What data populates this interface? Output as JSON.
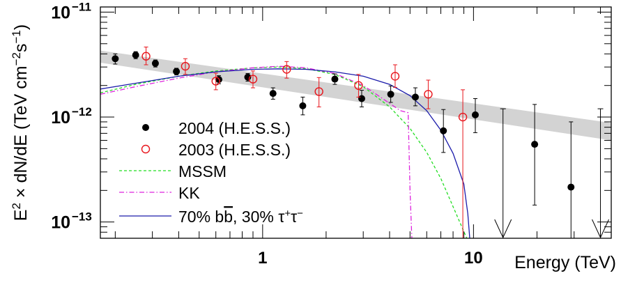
{
  "chart_data": {
    "type": "scatter",
    "title": "",
    "xlabel": "Energy (TeV)",
    "ylabel_parts": {
      "e": "E",
      "e_sup": "2",
      "mid": " × dN/dE (TeV cm",
      "cm_sup": "−2",
      "s": "s",
      "s_sup": "−1",
      "end": ")"
    },
    "x_scale": "log",
    "y_scale": "log",
    "xlim": [
      0.17,
      45
    ],
    "ylim": [
      7e-14,
      1.12e-11
    ],
    "x_ticks": [
      {
        "value": 1,
        "label": "1"
      },
      {
        "value": 10,
        "label": "10"
      }
    ],
    "y_ticks": [
      {
        "value": 1e-13,
        "base": "10",
        "exp": "−13"
      },
      {
        "value": 1e-12,
        "base": "10",
        "exp": "−12"
      },
      {
        "value": 1e-11,
        "base": "10",
        "exp": "−11"
      }
    ],
    "legend_position": "bottom-left",
    "colors": {
      "hess2004": "#000000",
      "hess2003": "#e8141b",
      "mssm": "#22dd22",
      "kk": "#dd22dd",
      "mix": "#1a1aaa",
      "band": "#d3d3d3"
    },
    "band": {
      "x": [
        0.17,
        45
      ],
      "lower": [
        3.3e-12,
        6e-13
      ],
      "upper": [
        4.3e-12,
        8.8e-13
      ]
    },
    "series": [
      {
        "name": "2004 (H.E.S.S.)",
        "marker": "filled-circle",
        "points": [
          {
            "x": 0.2,
            "y": 3.6e-12,
            "lo": 3.2e-12,
            "hi": 4e-12
          },
          {
            "x": 0.25,
            "y": 3.9e-12,
            "lo": 3.6e-12,
            "hi": 4.2e-12
          },
          {
            "x": 0.31,
            "y": 3.25e-12,
            "lo": 3e-12,
            "hi": 3.5e-12
          },
          {
            "x": 0.39,
            "y": 2.72e-12,
            "lo": 2.52e-12,
            "hi": 2.92e-12
          },
          {
            "x": 0.62,
            "y": 2.28e-12,
            "lo": 2.08e-12,
            "hi": 2.48e-12
          },
          {
            "x": 0.85,
            "y": 2.4e-12,
            "lo": 2.2e-12,
            "hi": 2.6e-12
          },
          {
            "x": 1.12,
            "y": 1.68e-12,
            "lo": 1.48e-12,
            "hi": 1.9e-12
          },
          {
            "x": 1.55,
            "y": 1.28e-12,
            "lo": 1.05e-12,
            "hi": 1.55e-12
          },
          {
            "x": 2.2,
            "y": 2.3e-12,
            "lo": 2.05e-12,
            "hi": 2.58e-12
          },
          {
            "x": 2.95,
            "y": 1.5e-12,
            "lo": 1.25e-12,
            "hi": 1.8e-12
          },
          {
            "x": 4.05,
            "y": 1.65e-12,
            "lo": 1.38e-12,
            "hi": 1.98e-12
          },
          {
            "x": 5.3,
            "y": 1.55e-12,
            "lo": 1.28e-12,
            "hi": 1.9e-12
          },
          {
            "x": 7.2,
            "y": 7.4e-13,
            "lo": 4.6e-13,
            "hi": 1.18e-12
          },
          {
            "x": 10.2,
            "y": 1.05e-12,
            "lo": 7.1e-13,
            "hi": 1.5e-12
          },
          {
            "x": 19.5,
            "y": 5.5e-13,
            "lo": 1.45e-13,
            "hi": 1.32e-12
          },
          {
            "x": 29.0,
            "y": 2.15e-13,
            "lo": 7e-14,
            "hi": 9e-13
          }
        ],
        "upper_limits": [
          {
            "x": 13.8,
            "y": 1.2e-12
          },
          {
            "x": 40.0,
            "y": 1.2e-12
          }
        ]
      },
      {
        "name": "2003 (H.E.S.S.)",
        "marker": "open-circle",
        "points": [
          {
            "x": 0.28,
            "y": 3.8e-12,
            "lo": 3.15e-12,
            "hi": 4.65e-12
          },
          {
            "x": 0.43,
            "y": 3.05e-12,
            "lo": 2.55e-12,
            "hi": 3.6e-12
          },
          {
            "x": 0.6,
            "y": 2.2e-12,
            "lo": 1.82e-12,
            "hi": 2.62e-12
          },
          {
            "x": 0.9,
            "y": 2.3e-12,
            "lo": 1.9e-12,
            "hi": 2.75e-12
          },
          {
            "x": 1.3,
            "y": 2.85e-12,
            "lo": 2.35e-12,
            "hi": 3.38e-12
          },
          {
            "x": 1.85,
            "y": 1.75e-12,
            "lo": 1.25e-12,
            "hi": 2.38e-12
          },
          {
            "x": 2.85,
            "y": 2e-12,
            "lo": 1.55e-12,
            "hi": 2.55e-12
          },
          {
            "x": 4.25,
            "y": 2.45e-12,
            "lo": 1.92e-12,
            "hi": 3.15e-12
          },
          {
            "x": 6.1,
            "y": 1.65e-12,
            "lo": 1.2e-12,
            "hi": 2.25e-12
          },
          {
            "x": 8.9,
            "y": 1e-12,
            "lo": 7e-14,
            "hi": 1.82e-12
          }
        ]
      },
      {
        "name": "MSSM",
        "style": "dashed",
        "points": [
          {
            "x": 0.17,
            "y": 1.7e-12
          },
          {
            "x": 0.25,
            "y": 2.05e-12
          },
          {
            "x": 0.4,
            "y": 2.45e-12
          },
          {
            "x": 0.6,
            "y": 2.75e-12
          },
          {
            "x": 0.9,
            "y": 2.95e-12
          },
          {
            "x": 1.2,
            "y": 3e-12
          },
          {
            "x": 1.6,
            "y": 2.9e-12
          },
          {
            "x": 2.2,
            "y": 2.55e-12
          },
          {
            "x": 3.0,
            "y": 1.95e-12
          },
          {
            "x": 4.0,
            "y": 1.25e-12
          },
          {
            "x": 5.0,
            "y": 7.8e-13
          },
          {
            "x": 6.0,
            "y": 4.6e-13
          },
          {
            "x": 7.0,
            "y": 2.6e-13
          },
          {
            "x": 8.0,
            "y": 1.4e-13
          },
          {
            "x": 8.8,
            "y": 9e-14
          },
          {
            "x": 9.3,
            "y": 7e-14
          }
        ]
      },
      {
        "name": "KK",
        "style": "dash-dot",
        "points": [
          {
            "x": 0.17,
            "y": 1.65e-12
          },
          {
            "x": 0.25,
            "y": 1.95e-12
          },
          {
            "x": 0.4,
            "y": 2.35e-12
          },
          {
            "x": 0.6,
            "y": 2.7e-12
          },
          {
            "x": 0.9,
            "y": 2.95e-12
          },
          {
            "x": 1.2,
            "y": 3.05e-12
          },
          {
            "x": 1.6,
            "y": 2.95e-12
          },
          {
            "x": 2.2,
            "y": 2.6e-12
          },
          {
            "x": 3.0,
            "y": 2e-12
          },
          {
            "x": 3.8,
            "y": 1.45e-12
          },
          {
            "x": 4.5,
            "y": 1.15e-12
          },
          {
            "x": 4.9,
            "y": 1.1e-12
          },
          {
            "x": 5.0,
            "y": 2e-13
          },
          {
            "x": 5.1,
            "y": 7e-14
          }
        ]
      },
      {
        "name_parts": {
          "a": "70% b",
          "b": "b",
          "c": ", 30% τ",
          "plus": "+",
          "d": "τ",
          "minus": "−"
        },
        "style": "solid",
        "points": [
          {
            "x": 0.17,
            "y": 1.85e-12
          },
          {
            "x": 0.25,
            "y": 2.1e-12
          },
          {
            "x": 0.4,
            "y": 2.45e-12
          },
          {
            "x": 0.6,
            "y": 2.7e-12
          },
          {
            "x": 0.9,
            "y": 2.85e-12
          },
          {
            "x": 1.2,
            "y": 2.88e-12
          },
          {
            "x": 1.6,
            "y": 2.85e-12
          },
          {
            "x": 2.2,
            "y": 2.7e-12
          },
          {
            "x": 3.0,
            "y": 2.45e-12
          },
          {
            "x": 4.0,
            "y": 2.05e-12
          },
          {
            "x": 5.0,
            "y": 1.6e-12
          },
          {
            "x": 6.0,
            "y": 1.15e-12
          },
          {
            "x": 7.0,
            "y": 7.5e-13
          },
          {
            "x": 8.0,
            "y": 4.5e-13
          },
          {
            "x": 9.0,
            "y": 2.3e-13
          },
          {
            "x": 9.4,
            "y": 1.2e-13
          },
          {
            "x": 9.6,
            "y": 7e-14
          }
        ]
      }
    ]
  }
}
